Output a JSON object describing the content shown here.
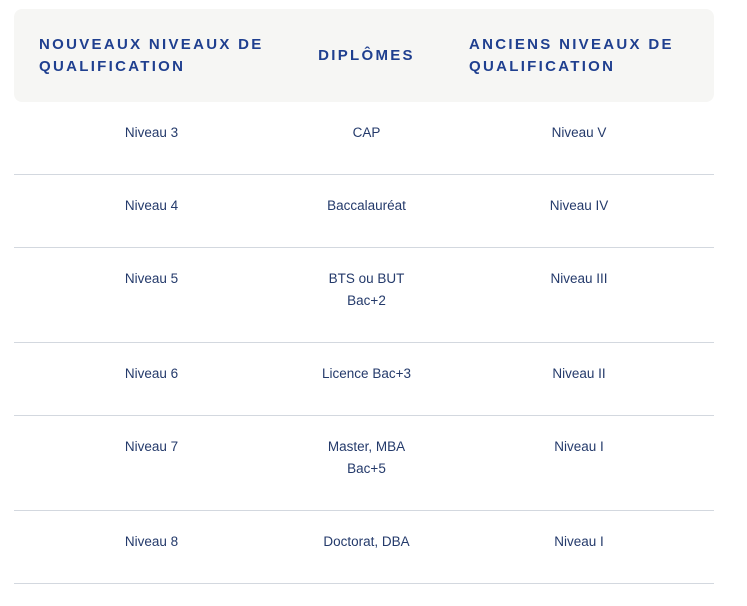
{
  "table": {
    "headers": [
      "NOUVEAUX NIVEAUX DE QUALIFICATION",
      "DIPLÔMES",
      "ANCIENS NIVEAUX DE QUALIFICATION"
    ],
    "rows": [
      {
        "new_level": "Niveau 3",
        "diploma": [
          "CAP"
        ],
        "old_level": "Niveau V"
      },
      {
        "new_level": "Niveau 4",
        "diploma": [
          "Baccalauréat"
        ],
        "old_level": "Niveau IV"
      },
      {
        "new_level": "Niveau 5",
        "diploma": [
          "BTS ou BUT",
          "Bac+2"
        ],
        "old_level": "Niveau III"
      },
      {
        "new_level": "Niveau 6",
        "diploma": [
          "Licence Bac+3"
        ],
        "old_level": "Niveau II"
      },
      {
        "new_level": "Niveau 7",
        "diploma": [
          "Master, MBA",
          "Bac+5"
        ],
        "old_level": "Niveau I"
      },
      {
        "new_level": "Niveau 8",
        "diploma": [
          "Doctorat, DBA"
        ],
        "old_level": "Niveau I"
      }
    ]
  },
  "colors": {
    "header_bg": "#f6f6f4",
    "header_text": "#1f3f8f",
    "body_text": "#243a6b",
    "row_divider": "#d3d8df"
  }
}
